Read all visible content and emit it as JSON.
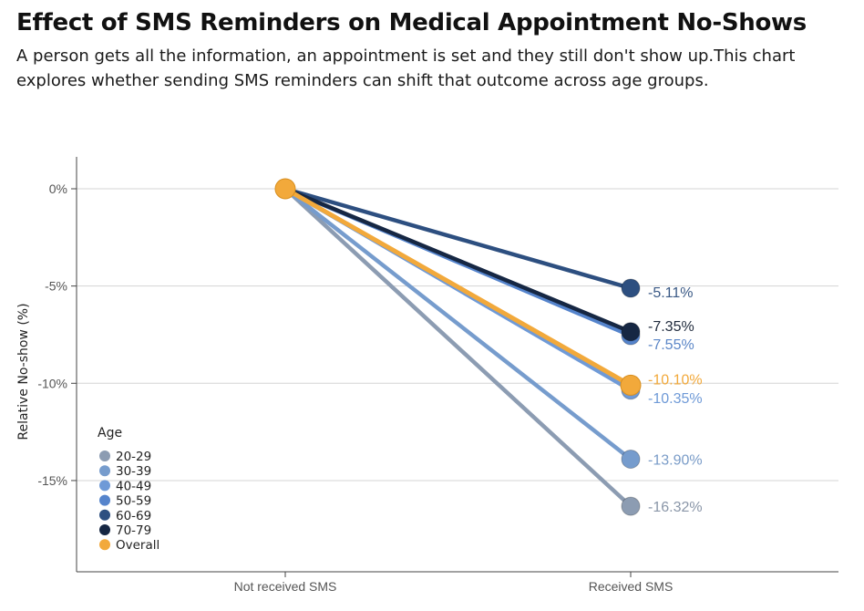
{
  "title": "Effect of SMS Reminders on Medical Appointment No-Shows",
  "subtitle": "A person gets all the information, an appointment is set and they still don't show up.This chart explores whether sending SMS reminders can shift that outcome across age groups.",
  "chart_data": {
    "type": "line",
    "title": "Effect of SMS Reminders on Medical Appointment No-Shows",
    "xlabel": "",
    "ylabel": "Relative No-show (%)",
    "categories": [
      "Not received SMS",
      "Received SMS"
    ],
    "ylim": [
      -19.5,
      1.6
    ],
    "yticks": [
      0,
      -5,
      -10,
      -15
    ],
    "ytick_labels": [
      "0%",
      "-5%",
      "-10%",
      "-15%"
    ],
    "grid": true,
    "legend": {
      "title": "Age",
      "position": "bottom-left"
    },
    "series": [
      {
        "name": "20-29",
        "values": [
          0,
          -16.32
        ],
        "label": "-16.32%",
        "color": "#8c9cb2"
      },
      {
        "name": "30-39",
        "values": [
          0,
          -13.9
        ],
        "label": "-13.90%",
        "color": "#769ccd"
      },
      {
        "name": "40-49",
        "values": [
          0,
          -10.35
        ],
        "label": "-10.35%",
        "color": "#6f9ad7"
      },
      {
        "name": "50-59",
        "values": [
          0,
          -7.55
        ],
        "label": "-7.55%",
        "color": "#5584cc"
      },
      {
        "name": "60-69",
        "values": [
          0,
          -5.11
        ],
        "label": "-5.11%",
        "color": "#2d4f80"
      },
      {
        "name": "70-79",
        "values": [
          0,
          -7.35
        ],
        "label": "-7.35%",
        "color": "#162743"
      },
      {
        "name": "Overall",
        "values": [
          0,
          -10.1
        ],
        "label": "-10.10%",
        "color": "#f2a93b"
      }
    ],
    "draw_order": [
      "20-29",
      "30-39",
      "40-49",
      "50-59",
      "60-69",
      "70-79",
      "Overall"
    ],
    "label_colors": {
      "20-29": "#8a96a8",
      "30-39": "#7a9cc8",
      "40-49": "#6f9ad7",
      "50-59": "#5b86c7",
      "60-69": "#3b5a86",
      "70-79": "#1f2a3c",
      "Overall": "#f2a93b"
    }
  }
}
